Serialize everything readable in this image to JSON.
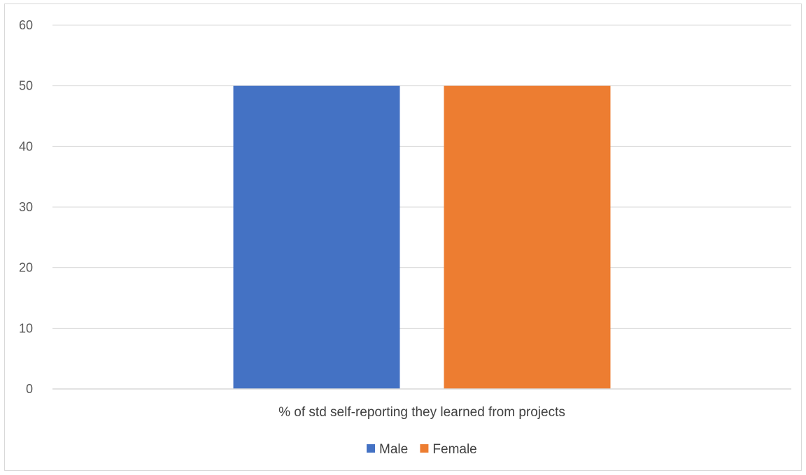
{
  "chart_data": {
    "type": "bar",
    "title": "",
    "categories": [
      "% of std self-reporting they learned from projects"
    ],
    "series": [
      {
        "name": "Male",
        "values": [
          50
        ],
        "color": "#4472C4"
      },
      {
        "name": "Female",
        "values": [
          50
        ],
        "color": "#ED7D31"
      }
    ],
    "xlabel": "",
    "ylabel": "",
    "ylim": [
      0,
      60
    ],
    "yticks": [
      0,
      10,
      20,
      30,
      40,
      50,
      60
    ],
    "grid": true,
    "gridline_color": "#d9d9d9",
    "legend_position": "bottom"
  }
}
